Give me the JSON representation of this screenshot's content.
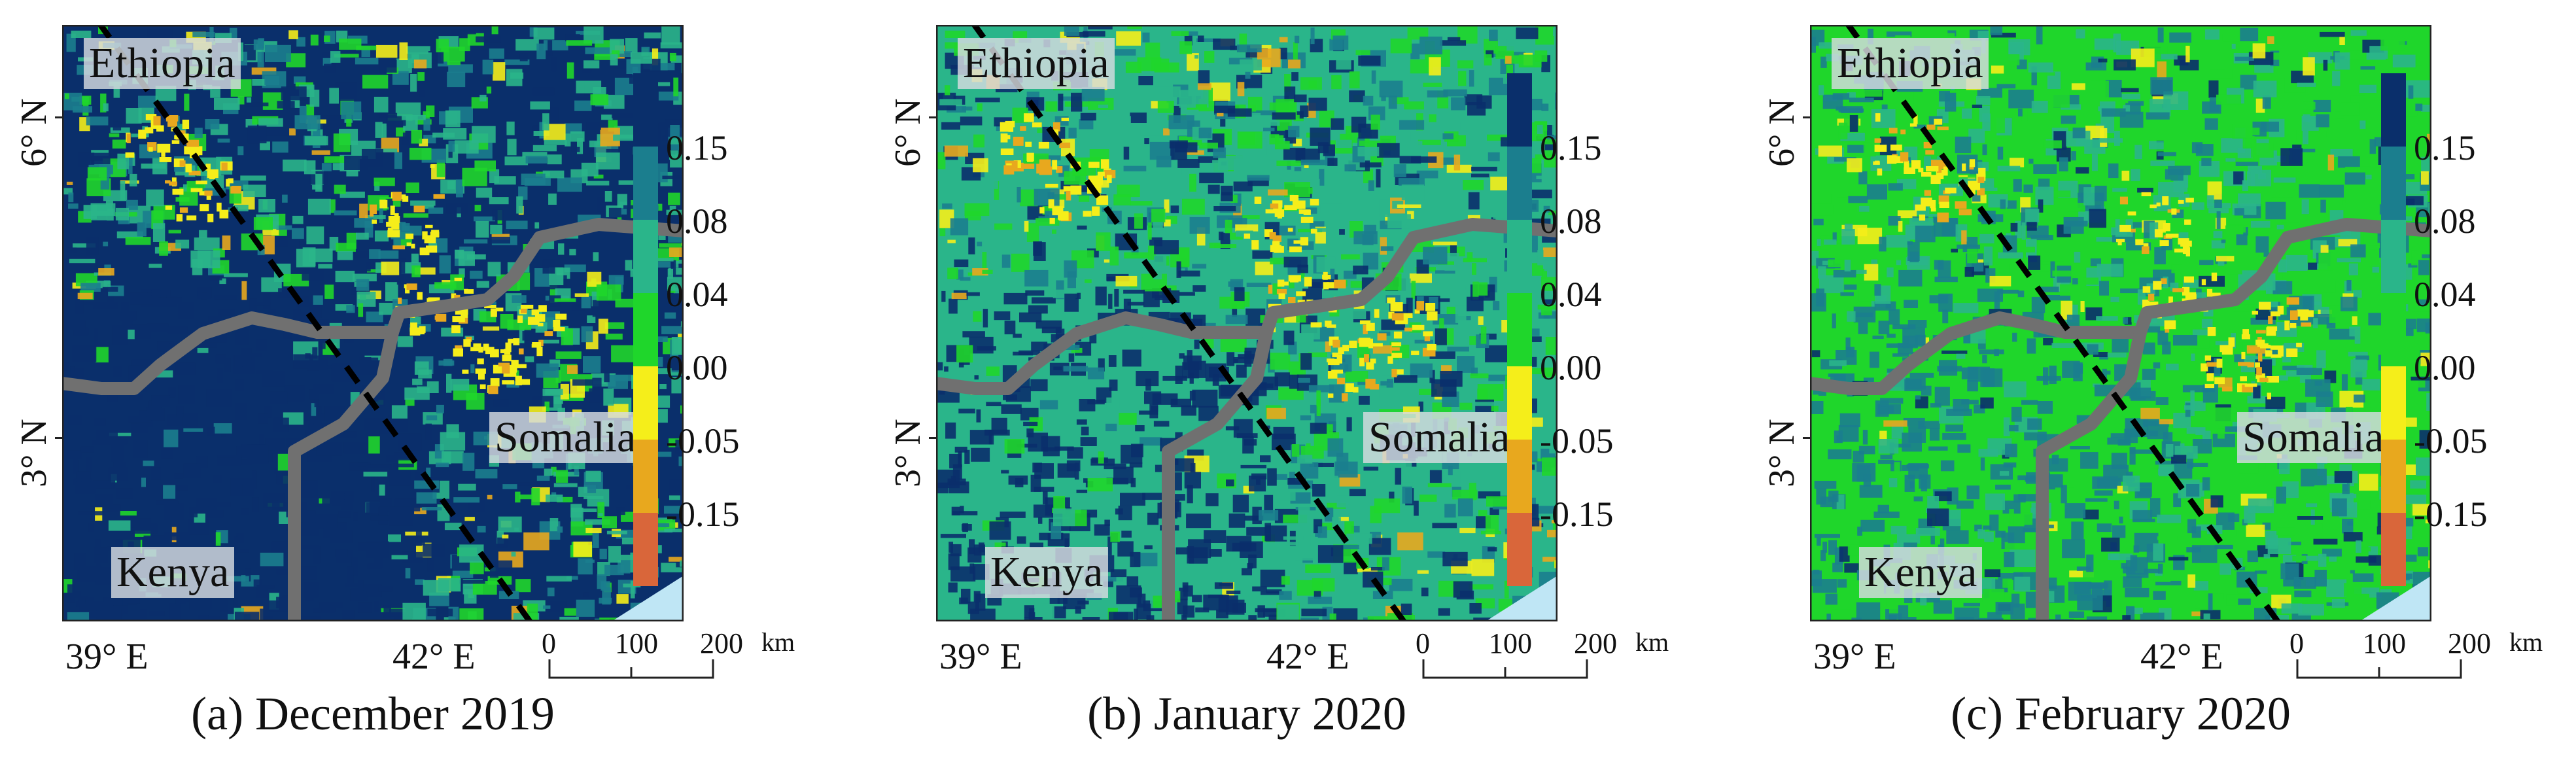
{
  "panels": [
    {
      "caption": "(a) December 2019",
      "scheme": "dark",
      "countries": [
        "Ethiopia",
        "Somalia",
        "Kenya"
      ],
      "lat_labels": [
        "6° N",
        "3° N"
      ],
      "lon_labels": [
        "39° E",
        "42° E"
      ]
    },
    {
      "caption": "(b) January 2020",
      "scheme": "mixed",
      "countries": [
        "Ethiopia",
        "Somalia",
        "Kenya"
      ],
      "lat_labels": [
        "6° N",
        "3° N"
      ],
      "lon_labels": [
        "39° E",
        "42° E"
      ]
    },
    {
      "caption": "(c) February 2020",
      "scheme": "green",
      "countries": [
        "Ethiopia",
        "Somalia",
        "Kenya"
      ],
      "lat_labels": [
        "6° N",
        "3° N"
      ],
      "lon_labels": [
        "39° E",
        "42° E"
      ]
    }
  ],
  "colorbar": {
    "ticks": [
      "0.15",
      "0.08",
      "0.04",
      "0.00",
      "-0.05",
      "-0.15"
    ],
    "colors": [
      "#0a2f6b",
      "#1b7e8e",
      "#2ab58a",
      "#1fd62b",
      "#f5ee1a",
      "#e8a81e",
      "#d9663a"
    ]
  },
  "scalebar": {
    "labels": [
      "0",
      "100",
      "200"
    ],
    "unit": "km"
  },
  "colors": {
    "border": "#707070",
    "track": "#000000",
    "water": "#bfe6f5"
  }
}
